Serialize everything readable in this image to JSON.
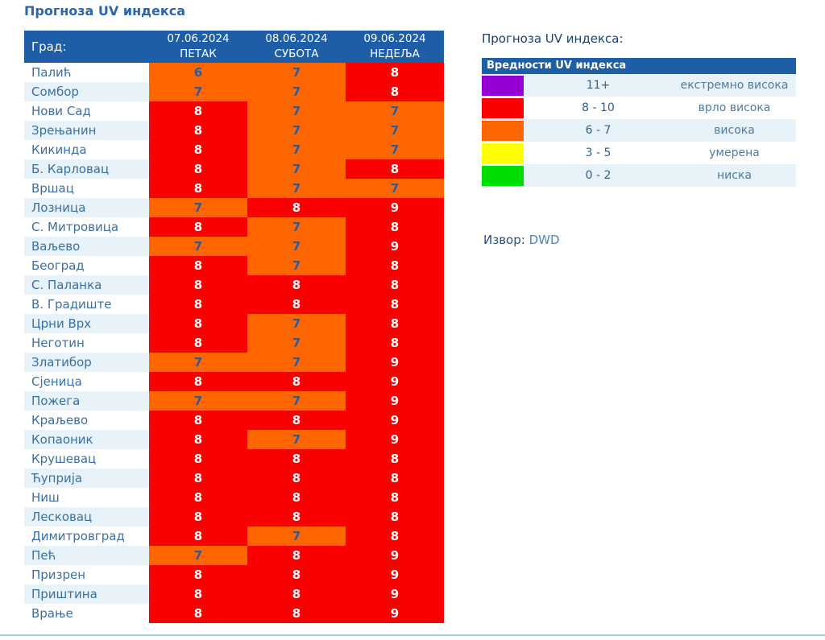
{
  "page": {
    "title": "Прогноза UV индекса"
  },
  "table": {
    "header": {
      "city_label": "Град:",
      "columns": [
        {
          "date": "07.06.2024",
          "day": "ПЕТАК"
        },
        {
          "date": "08.06.2024",
          "day": "СУБОТА"
        },
        {
          "date": "09.06.2024",
          "day": "НЕДЕЉА"
        }
      ]
    },
    "rows": [
      {
        "city": "Палић",
        "values": [
          6,
          7,
          8
        ]
      },
      {
        "city": "Сомбор",
        "values": [
          7,
          7,
          8
        ]
      },
      {
        "city": "Нови Сад",
        "values": [
          8,
          7,
          7
        ]
      },
      {
        "city": "Зрењанин",
        "values": [
          8,
          7,
          7
        ]
      },
      {
        "city": "Кикинда",
        "values": [
          8,
          7,
          7
        ]
      },
      {
        "city": "Б. Карловац",
        "values": [
          8,
          7,
          8
        ]
      },
      {
        "city": "Вршац",
        "values": [
          8,
          7,
          7
        ]
      },
      {
        "city": "Лозница",
        "values": [
          7,
          8,
          9
        ]
      },
      {
        "city": "С. Митровица",
        "values": [
          8,
          7,
          8
        ]
      },
      {
        "city": "Ваљево",
        "values": [
          7,
          7,
          9
        ]
      },
      {
        "city": "Београд",
        "values": [
          8,
          7,
          8
        ]
      },
      {
        "city": "С. Паланка",
        "values": [
          8,
          8,
          8
        ]
      },
      {
        "city": "В. Градиште",
        "values": [
          8,
          8,
          8
        ]
      },
      {
        "city": "Црни Врх",
        "values": [
          8,
          7,
          8
        ]
      },
      {
        "city": "Неготин",
        "values": [
          8,
          7,
          8
        ]
      },
      {
        "city": "Златибор",
        "values": [
          7,
          7,
          9
        ]
      },
      {
        "city": "Сјеница",
        "values": [
          8,
          8,
          9
        ]
      },
      {
        "city": "Пожега",
        "values": [
          7,
          7,
          9
        ]
      },
      {
        "city": "Краљево",
        "values": [
          8,
          8,
          9
        ]
      },
      {
        "city": "Копаоник",
        "values": [
          8,
          7,
          9
        ]
      },
      {
        "city": "Крушевац",
        "values": [
          8,
          8,
          8
        ]
      },
      {
        "city": "Ћуприја",
        "values": [
          8,
          8,
          8
        ]
      },
      {
        "city": "Ниш",
        "values": [
          8,
          8,
          8
        ]
      },
      {
        "city": "Лесковац",
        "values": [
          8,
          8,
          8
        ]
      },
      {
        "city": "Димитровград",
        "values": [
          8,
          7,
          8
        ]
      },
      {
        "city": "Пећ",
        "values": [
          7,
          8,
          9
        ]
      },
      {
        "city": "Призрен",
        "values": [
          8,
          8,
          9
        ]
      },
      {
        "city": "Приштина",
        "values": [
          8,
          8,
          9
        ]
      },
      {
        "city": "Врање",
        "values": [
          8,
          8,
          9
        ]
      }
    ]
  },
  "legend": {
    "title": "Прогноза UV индекса:",
    "header": "Вредности UV индекса",
    "items": [
      {
        "range": "11+",
        "label": "екстремно висока",
        "color": "#9400d3"
      },
      {
        "range": "8 - 10",
        "label": "врло висока",
        "color": "#fa0000"
      },
      {
        "range": "6 - 7",
        "label": "висока",
        "color": "#ff6600"
      },
      {
        "range": "3 - 5",
        "label": "умерена",
        "color": "#ffff00"
      },
      {
        "range": "0 - 2",
        "label": "ниска",
        "color": "#00dd00"
      }
    ]
  },
  "source": {
    "label": "Извор:",
    "value": "DWD"
  },
  "colors": {
    "header_bg": "#1e5ea7",
    "title_color": "#2b65ac",
    "city_color": "#3a70a8",
    "row_alt_bg": "#e8f2f9",
    "cell_orange": "#ff6600",
    "cell_red": "#fa0000",
    "value_dark_text": "#2a5b9a",
    "value_light_text": "#ffffff",
    "legend_title_color": "#1d3f72",
    "legend_range_color": "#33608f",
    "legend_label_color": "#4d7ca8",
    "source_color": "#29507f",
    "source_link_color": "#4f81bd",
    "divider_color": "#a5d2e2",
    "red_min": 8
  }
}
